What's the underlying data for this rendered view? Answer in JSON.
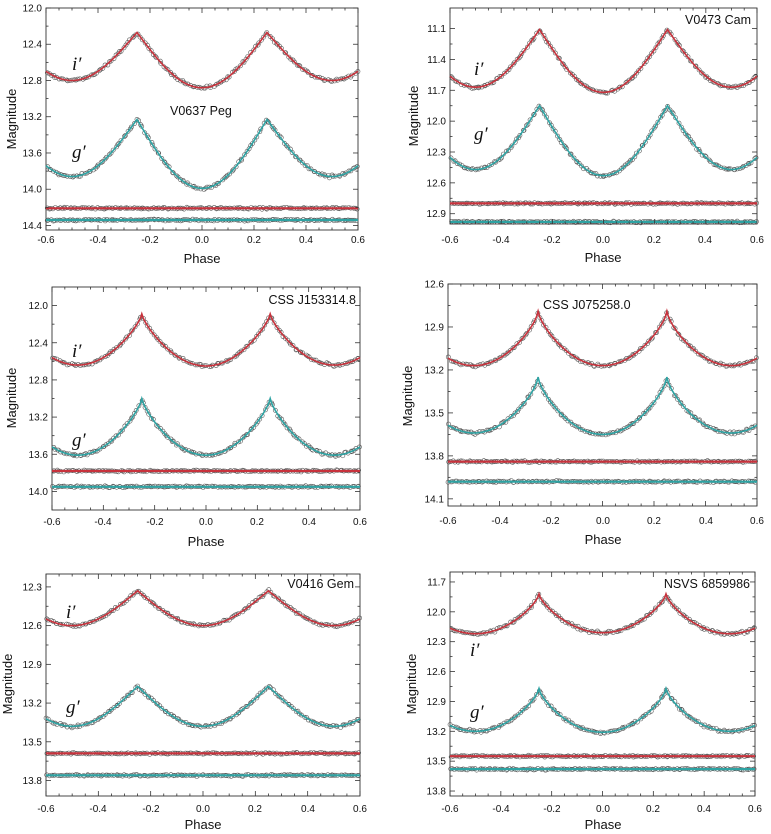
{
  "figure": {
    "colors": {
      "i_band": "#c8323c",
      "g_band": "#2ea3a3",
      "points": "#555555",
      "frame": "#333333"
    }
  },
  "chart_data": [
    {
      "type": "scatter",
      "title": "V0637 Peg",
      "xlabel": "Phase",
      "ylabel": "Magnitude",
      "xlim": [
        -0.6,
        0.6
      ],
      "ylim": [
        14.45,
        12.0
      ],
      "xticks": [
        "-0.6",
        "-0.4",
        "-0.2",
        "0.0",
        "0.2",
        "0.4",
        "0.6"
      ],
      "yticks": [
        "12.0",
        "12.4",
        "12.8",
        "13.2",
        "13.6",
        "14.0",
        "14.4"
      ],
      "ytick_values": [
        12.0,
        12.4,
        12.8,
        13.2,
        13.6,
        14.0,
        14.4
      ],
      "band_labels": [
        "i′",
        "g′"
      ],
      "series": [
        {
          "name": "i′",
          "type": "curve",
          "max": 12.27,
          "min1": 12.88,
          "min2": 12.8,
          "shape": 1.0
        },
        {
          "name": "g′",
          "type": "curve",
          "max": 13.23,
          "min1": 13.99,
          "min2": 13.86,
          "shape": 1.0
        },
        {
          "name": "i′ residuals",
          "type": "flat",
          "level": 14.21
        },
        {
          "name": "g′ residuals",
          "type": "flat",
          "level": 14.34
        }
      ]
    },
    {
      "type": "scatter",
      "title": "V0473 Cam",
      "xlabel": "Phase",
      "ylabel": "Magnitude",
      "xlim": [
        -0.6,
        0.6
      ],
      "ylim": [
        13.0,
        10.9
      ],
      "xticks": [
        "-0.6",
        "-0.4",
        "-0.2",
        "0.0",
        "0.2",
        "0.4",
        "0.6"
      ],
      "yticks": [
        "11.1",
        "11.4",
        "11.7",
        "12.0",
        "12.3",
        "12.6",
        "12.9"
      ],
      "ytick_values": [
        11.1,
        11.4,
        11.7,
        12.0,
        12.3,
        12.6,
        12.9
      ],
      "band_labels": [
        "i′",
        "g′"
      ],
      "series": [
        {
          "name": "i′",
          "type": "curve",
          "max": 11.11,
          "min1": 11.72,
          "min2": 11.67,
          "shape": 1.0
        },
        {
          "name": "g′",
          "type": "curve",
          "max": 11.85,
          "min1": 12.53,
          "min2": 12.47,
          "shape": 1.0
        },
        {
          "name": "i′ residuals",
          "type": "flat",
          "level": 12.8
        },
        {
          "name": "g′ residuals",
          "type": "flat",
          "level": 12.98
        }
      ]
    },
    {
      "type": "scatter",
      "title": "CSS J153314.8",
      "xlabel": "Phase",
      "ylabel": "Magnitude",
      "xlim": [
        -0.6,
        0.6
      ],
      "ylim": [
        14.2,
        11.8
      ],
      "xticks": [
        "-0.6",
        "-0.4",
        "-0.2",
        "0.0",
        "0.2",
        "0.4",
        "0.6"
      ],
      "yticks": [
        "12.0",
        "12.4",
        "12.8",
        "13.2",
        "13.6",
        "14.0"
      ],
      "ytick_values": [
        12.0,
        12.4,
        12.8,
        13.2,
        13.6,
        14.0
      ],
      "band_labels": [
        "i′",
        "g′"
      ],
      "series": [
        {
          "name": "i′",
          "type": "curve",
          "max": 12.09,
          "min1": 12.65,
          "min2": 12.64,
          "shape": 0.75
        },
        {
          "name": "g′",
          "type": "curve",
          "max": 13.0,
          "min1": 13.61,
          "min2": 13.61,
          "shape": 0.75
        },
        {
          "name": "i′ residuals",
          "type": "flat",
          "level": 13.78
        },
        {
          "name": "g′ residuals",
          "type": "flat",
          "level": 13.95
        }
      ]
    },
    {
      "type": "scatter",
      "title": "CSS J075258.0",
      "xlabel": "Phase",
      "ylabel": "Magnitude",
      "xlim": [
        -0.6,
        0.6
      ],
      "ylim": [
        14.15,
        12.6
      ],
      "xticks": [
        "-0.6",
        "-0.4",
        "-0.2",
        "0.0",
        "0.2",
        "0.4",
        "0.6"
      ],
      "yticks": [
        "12.6",
        "12.9",
        "13.2",
        "13.5",
        "13.8",
        "14.1"
      ],
      "ytick_values": [
        12.6,
        12.9,
        13.2,
        13.5,
        13.8,
        14.1
      ],
      "band_labels": [],
      "series": [
        {
          "name": "i′",
          "type": "curve",
          "max": 12.79,
          "min1": 13.17,
          "min2": 13.17,
          "shape": 0.7
        },
        {
          "name": "g′",
          "type": "curve",
          "max": 13.25,
          "min1": 13.65,
          "min2": 13.64,
          "shape": 0.7
        },
        {
          "name": "i′ residuals",
          "type": "flat",
          "level": 13.84
        },
        {
          "name": "g′ residuals",
          "type": "flat",
          "level": 13.98
        }
      ]
    },
    {
      "type": "scatter",
      "title": "V0416 Gem",
      "xlabel": "Phase",
      "ylabel": "Magnitude",
      "xlim": [
        -0.6,
        0.6
      ],
      "ylim": [
        13.92,
        12.2
      ],
      "xticks": [
        "-0.6",
        "-0.4",
        "-0.2",
        "0.0",
        "0.2",
        "0.4",
        "0.6"
      ],
      "yticks": [
        "12.3",
        "12.6",
        "12.9",
        "13.2",
        "13.5",
        "13.8"
      ],
      "ytick_values": [
        12.3,
        12.6,
        12.9,
        13.2,
        13.5,
        13.8
      ],
      "band_labels": [
        "i′",
        "g′"
      ],
      "series": [
        {
          "name": "i′",
          "type": "curve",
          "max": 12.33,
          "min1": 12.6,
          "min2": 12.6,
          "shape": 1.0
        },
        {
          "name": "g′",
          "type": "curve",
          "max": 13.07,
          "min1": 13.38,
          "min2": 13.38,
          "shape": 1.0
        },
        {
          "name": "i′ residuals",
          "type": "flat",
          "level": 13.59
        },
        {
          "name": "g′ residuals",
          "type": "flat",
          "level": 13.76
        }
      ]
    },
    {
      "type": "scatter",
      "title": "NSVS  6859986",
      "xlabel": "Phase",
      "ylabel": "Magnitude",
      "xlim": [
        -0.6,
        0.6
      ],
      "ylim": [
        13.85,
        11.6
      ],
      "xticks": [
        "-0.6",
        "-0.4",
        "-0.2",
        "0.0",
        "0.2",
        "0.4",
        "0.6"
      ],
      "yticks": [
        "11.7",
        "12.0",
        "12.3",
        "12.6",
        "12.9",
        "13.2",
        "13.5",
        "13.8"
      ],
      "ytick_values": [
        11.7,
        12.0,
        12.3,
        12.6,
        12.9,
        13.2,
        13.5,
        13.8
      ],
      "band_labels": [
        "i′",
        "g′"
      ],
      "series": [
        {
          "name": "i′",
          "type": "curve",
          "max": 11.82,
          "min1": 12.21,
          "min2": 12.22,
          "shape": 0.7
        },
        {
          "name": "g′",
          "type": "curve",
          "max": 12.77,
          "min1": 13.21,
          "min2": 13.2,
          "shape": 0.7
        },
        {
          "name": "i′ residuals",
          "type": "flat",
          "level": 13.45
        },
        {
          "name": "g′ residuals",
          "type": "flat",
          "level": 13.58
        }
      ]
    }
  ]
}
